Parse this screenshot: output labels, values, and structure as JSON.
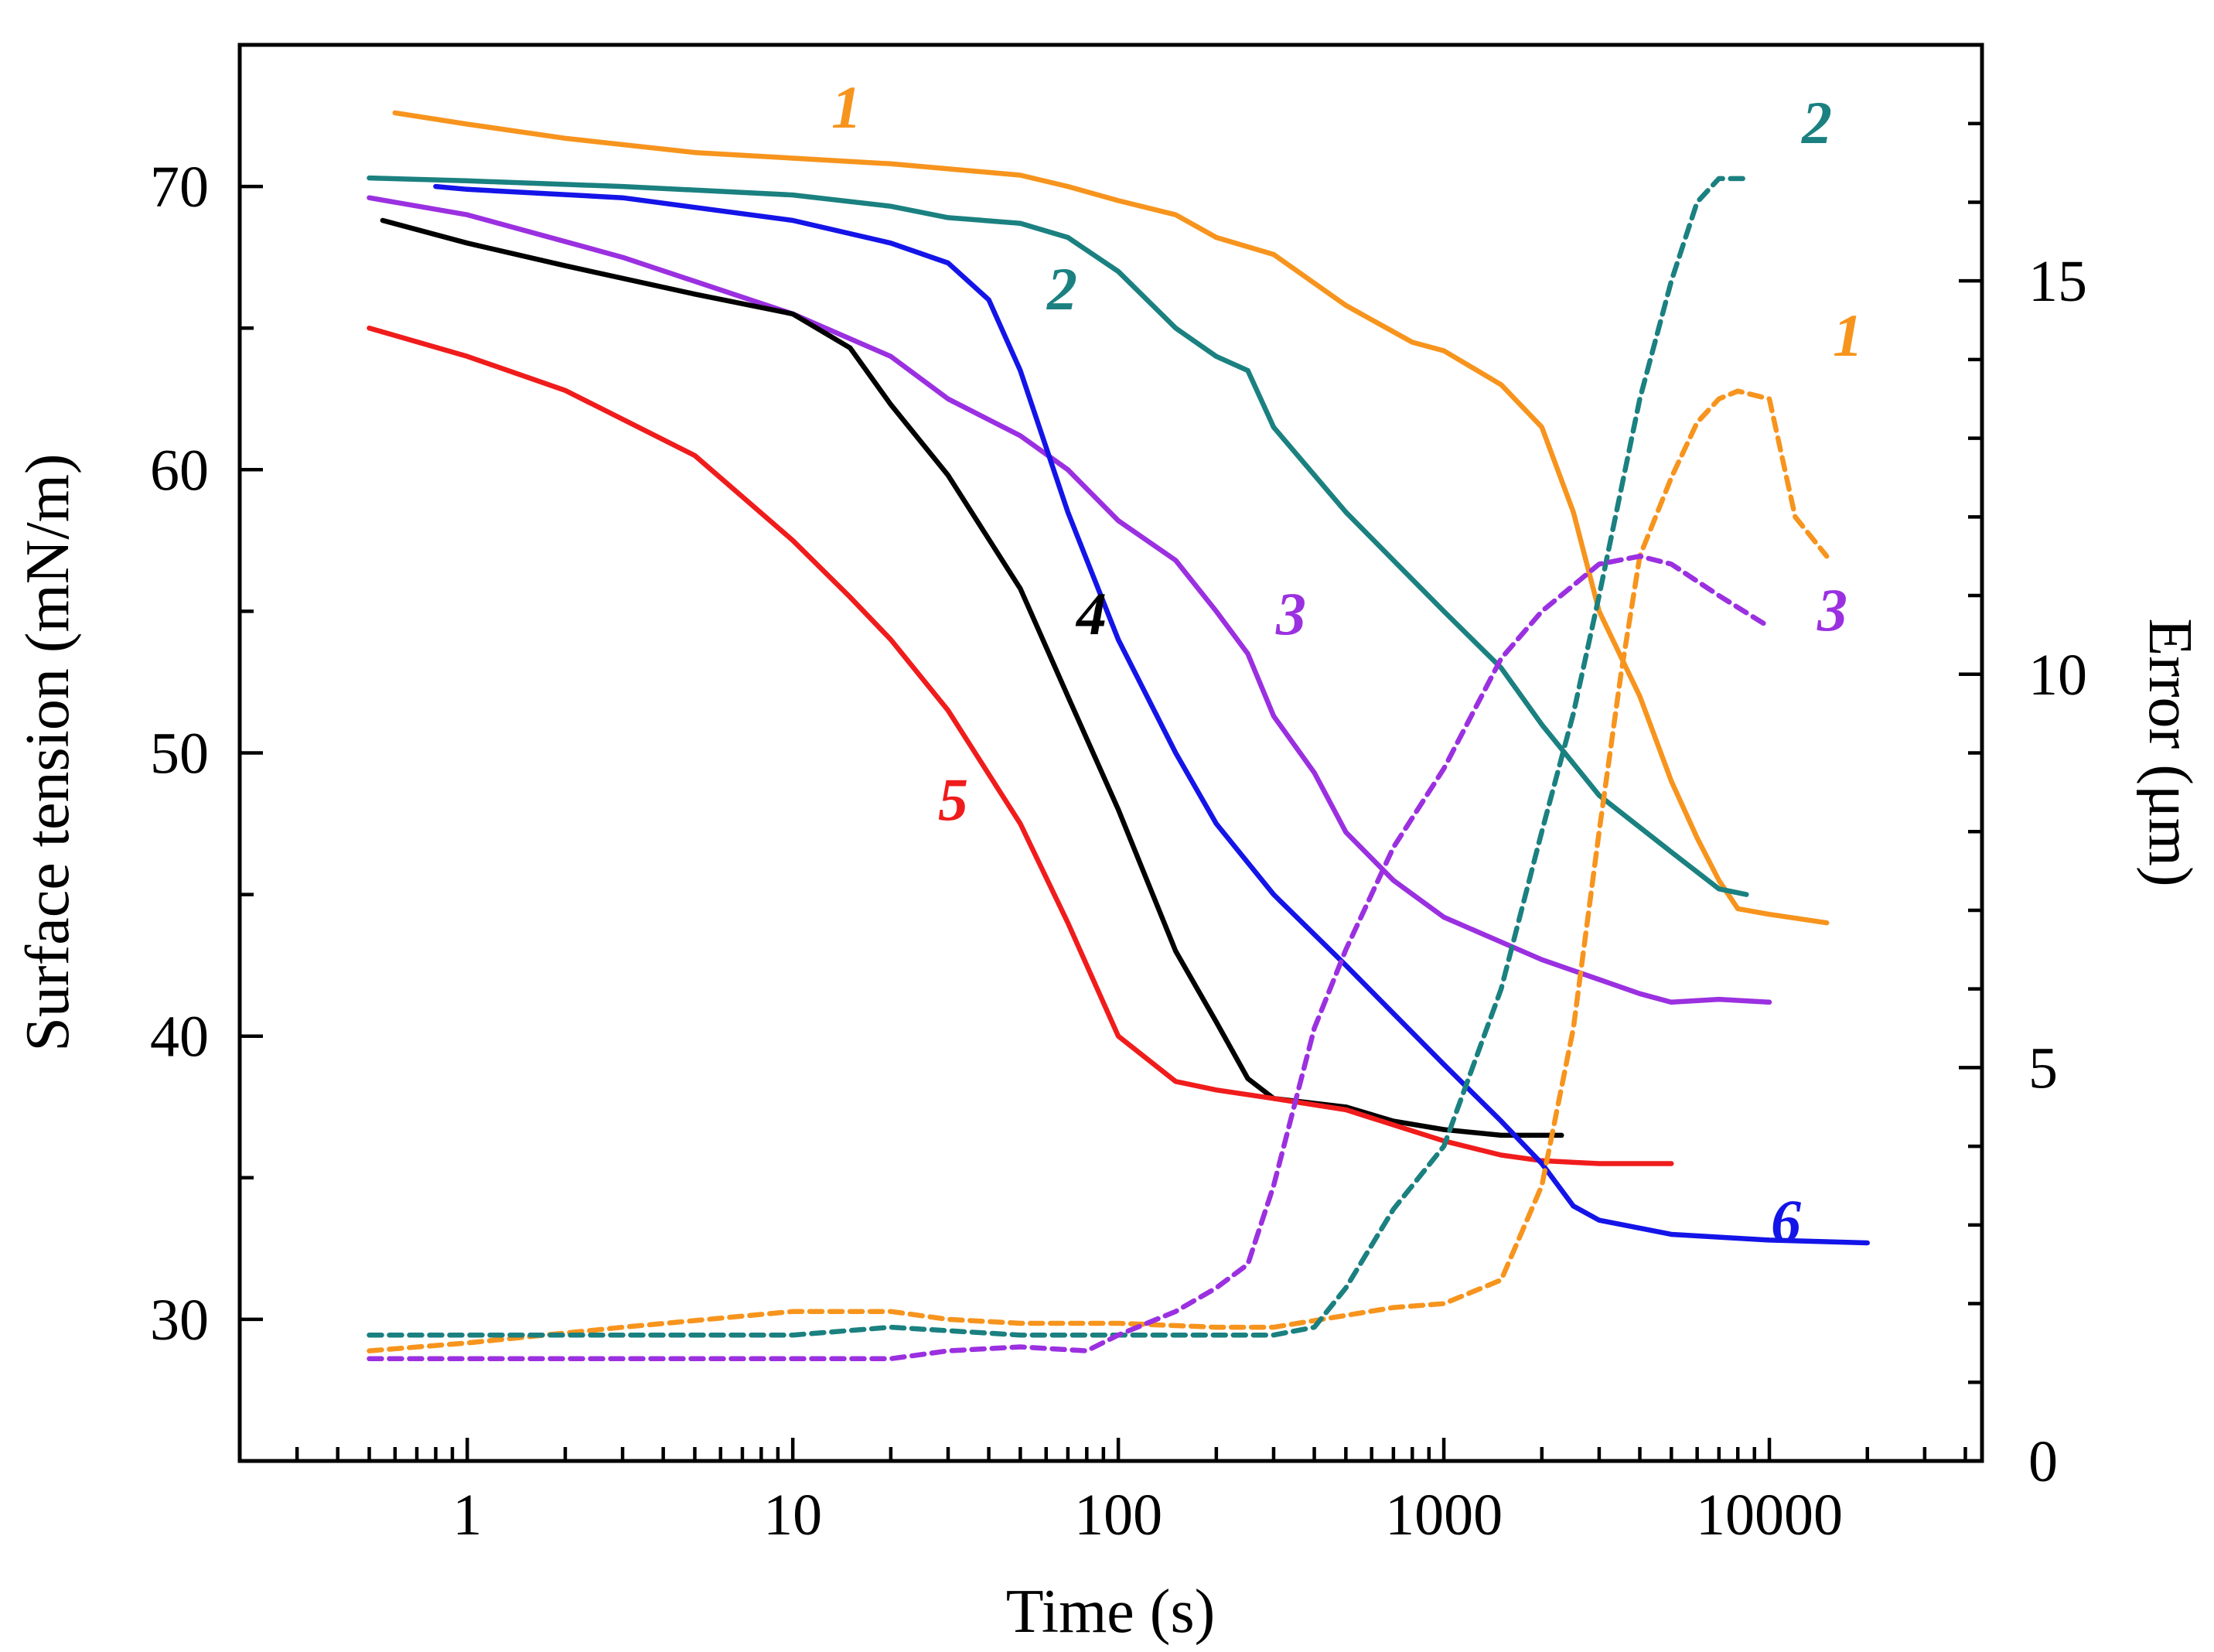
{
  "chart_data": {
    "type": "line",
    "title": "",
    "xlabel": "Time (s)",
    "ylabel": "Surface tension (mN/m)",
    "y2label": "Error (μm)",
    "xscale": "log",
    "xlim": [
      0.2,
      45000
    ],
    "ylim": [
      25,
      75
    ],
    "y2lim": [
      0,
      18
    ],
    "xticks": [
      {
        "value": 1,
        "label": "1"
      },
      {
        "value": 10,
        "label": "10"
      },
      {
        "value": 100,
        "label": "100"
      },
      {
        "value": 1000,
        "label": "1000"
      },
      {
        "value": 10000,
        "label": "10000"
      }
    ],
    "yticks": [
      {
        "value": 30,
        "label": "30"
      },
      {
        "value": 40,
        "label": "40"
      },
      {
        "value": 50,
        "label": "50"
      },
      {
        "value": 60,
        "label": "60"
      },
      {
        "value": 70,
        "label": "70"
      }
    ],
    "y2ticks": [
      {
        "value": 0,
        "label": "0"
      },
      {
        "value": 5,
        "label": "5"
      },
      {
        "value": 10,
        "label": "10"
      },
      {
        "value": 15,
        "label": "15"
      }
    ],
    "series": [
      {
        "name": "1",
        "axis": "left",
        "style": "solid",
        "color": "#F7941D",
        "x": [
          0.6,
          1,
          2,
          5,
          10,
          20,
          50,
          70,
          100,
          150,
          200,
          300,
          500,
          800,
          1000,
          1500,
          2000,
          2500,
          3000,
          4000,
          5000,
          6000,
          7000,
          8000,
          10000,
          15000
        ],
        "y": [
          72.6,
          72.2,
          71.7,
          71.2,
          71.0,
          70.8,
          70.4,
          70.0,
          69.5,
          69.0,
          68.2,
          67.6,
          65.8,
          64.5,
          64.2,
          63.0,
          61.5,
          58.5,
          55.0,
          52.0,
          49.0,
          47.0,
          45.5,
          44.5,
          44.3,
          44.0
        ]
      },
      {
        "name": "2",
        "axis": "left",
        "style": "solid",
        "color": "#1B8080",
        "x": [
          0.5,
          1,
          3,
          10,
          20,
          30,
          50,
          70,
          100,
          150,
          200,
          250,
          300,
          500,
          700,
          1000,
          1500,
          2000,
          3000,
          5000,
          7000,
          8500
        ],
        "y": [
          70.3,
          70.2,
          70.0,
          69.7,
          69.3,
          68.9,
          68.7,
          68.2,
          67.0,
          65.0,
          64.0,
          63.5,
          61.5,
          58.5,
          56.8,
          55.0,
          53.0,
          51.0,
          48.5,
          46.5,
          45.2,
          45.0
        ]
      },
      {
        "name": "3",
        "axis": "left",
        "style": "solid",
        "color": "#9B30E0",
        "x": [
          0.5,
          1,
          3,
          10,
          20,
          30,
          50,
          70,
          100,
          150,
          200,
          250,
          300,
          400,
          500,
          700,
          1000,
          2000,
          3000,
          4000,
          5000,
          7000,
          10000
        ],
        "y": [
          69.6,
          69.0,
          67.5,
          65.5,
          64.0,
          62.5,
          61.2,
          60.0,
          58.2,
          56.8,
          55.0,
          53.5,
          51.3,
          49.3,
          47.2,
          45.5,
          44.2,
          42.7,
          42.0,
          41.5,
          41.2,
          41.3,
          41.2
        ]
      },
      {
        "name": "4",
        "axis": "left",
        "style": "solid",
        "color": "#000000",
        "x": [
          0.55,
          1,
          2,
          5,
          10,
          15,
          20,
          30,
          50,
          70,
          100,
          150,
          200,
          250,
          300,
          500,
          700,
          1000,
          1500,
          2300
        ],
        "y": [
          68.8,
          68.0,
          67.2,
          66.2,
          65.5,
          64.3,
          62.3,
          59.8,
          55.8,
          52.0,
          48.0,
          43.0,
          40.5,
          38.5,
          37.8,
          37.5,
          37.0,
          36.7,
          36.5,
          36.5
        ]
      },
      {
        "name": "5",
        "axis": "left",
        "style": "solid",
        "color": "#F01C1C",
        "x": [
          0.5,
          1,
          2,
          5,
          10,
          15,
          20,
          30,
          50,
          70,
          100,
          150,
          200,
          300,
          500,
          1000,
          1500,
          2000,
          3000,
          5000
        ],
        "y": [
          65.0,
          64.0,
          62.8,
          60.5,
          57.5,
          55.5,
          54.0,
          51.5,
          47.5,
          44.0,
          40.0,
          38.4,
          38.1,
          37.8,
          37.4,
          36.3,
          35.8,
          35.6,
          35.5,
          35.5
        ]
      },
      {
        "name": "6",
        "axis": "left",
        "style": "solid",
        "color": "#1414E8",
        "x": [
          0.8,
          1,
          3,
          10,
          20,
          30,
          40,
          50,
          70,
          100,
          150,
          200,
          300,
          500,
          1000,
          1500,
          2000,
          2500,
          3000,
          5000,
          10000,
          20000
        ],
        "y": [
          70.0,
          69.9,
          69.6,
          68.8,
          68.0,
          67.3,
          66.0,
          63.5,
          58.5,
          54.0,
          50.0,
          47.5,
          45.0,
          42.5,
          39.0,
          37.0,
          35.5,
          34.0,
          33.5,
          33.0,
          32.8,
          32.7
        ]
      },
      {
        "name": "1",
        "axis": "right",
        "style": "dashed",
        "color": "#F7941D",
        "x": [
          0.5,
          1,
          3,
          10,
          20,
          30,
          50,
          100,
          200,
          300,
          500,
          700,
          1000,
          1500,
          2000,
          2500,
          3000,
          3500,
          4000,
          5000,
          6000,
          7000,
          8000,
          10000,
          12000,
          15000
        ],
        "y": [
          1.4,
          1.5,
          1.7,
          1.9,
          1.9,
          1.8,
          1.75,
          1.75,
          1.7,
          1.7,
          1.85,
          1.95,
          2.0,
          2.3,
          3.5,
          5.5,
          8.0,
          10.0,
          11.5,
          12.5,
          13.2,
          13.5,
          13.6,
          13.5,
          12.0,
          11.5
        ]
      },
      {
        "name": "2",
        "axis": "right",
        "style": "dashed",
        "color": "#1B8080",
        "x": [
          0.5,
          1,
          3,
          10,
          20,
          50,
          100,
          200,
          300,
          400,
          500,
          700,
          1000,
          1500,
          2000,
          2500,
          3000,
          4000,
          5000,
          6000,
          7000,
          8500
        ],
        "y": [
          1.6,
          1.6,
          1.6,
          1.6,
          1.7,
          1.6,
          1.6,
          1.6,
          1.6,
          1.7,
          2.2,
          3.2,
          4.0,
          6.0,
          8.0,
          9.5,
          11.0,
          13.5,
          15.0,
          16.0,
          16.3,
          16.3
        ]
      },
      {
        "name": "3",
        "axis": "right",
        "style": "dashed",
        "color": "#9B30E0",
        "x": [
          0.5,
          1,
          3,
          10,
          20,
          30,
          50,
          80,
          100,
          150,
          200,
          250,
          300,
          400,
          500,
          700,
          1000,
          1500,
          2000,
          3000,
          4000,
          5000,
          7000,
          10000
        ],
        "y": [
          1.3,
          1.3,
          1.3,
          1.3,
          1.3,
          1.4,
          1.45,
          1.4,
          1.6,
          1.9,
          2.2,
          2.5,
          3.5,
          5.5,
          6.5,
          7.8,
          8.8,
          10.2,
          10.8,
          11.4,
          11.5,
          11.4,
          11.0,
          10.6
        ]
      }
    ],
    "labels": [
      {
        "text": "1",
        "color": "#F7941D",
        "near": "orange solid top"
      },
      {
        "text": "2",
        "color": "#1B8080",
        "near": "teal solid"
      },
      {
        "text": "3",
        "color": "#9B30E0",
        "near": "purple solid"
      },
      {
        "text": "4",
        "color": "#000000",
        "near": "black solid"
      },
      {
        "text": "5",
        "color": "#F01C1C",
        "near": "red solid"
      },
      {
        "text": "6",
        "color": "#1414E8",
        "near": "blue solid end"
      },
      {
        "text": "2",
        "color": "#1B8080",
        "near": "teal dashed end"
      },
      {
        "text": "1",
        "color": "#F7941D",
        "near": "orange dashed end"
      },
      {
        "text": "3",
        "color": "#9B30E0",
        "near": "purple dashed end"
      }
    ]
  }
}
